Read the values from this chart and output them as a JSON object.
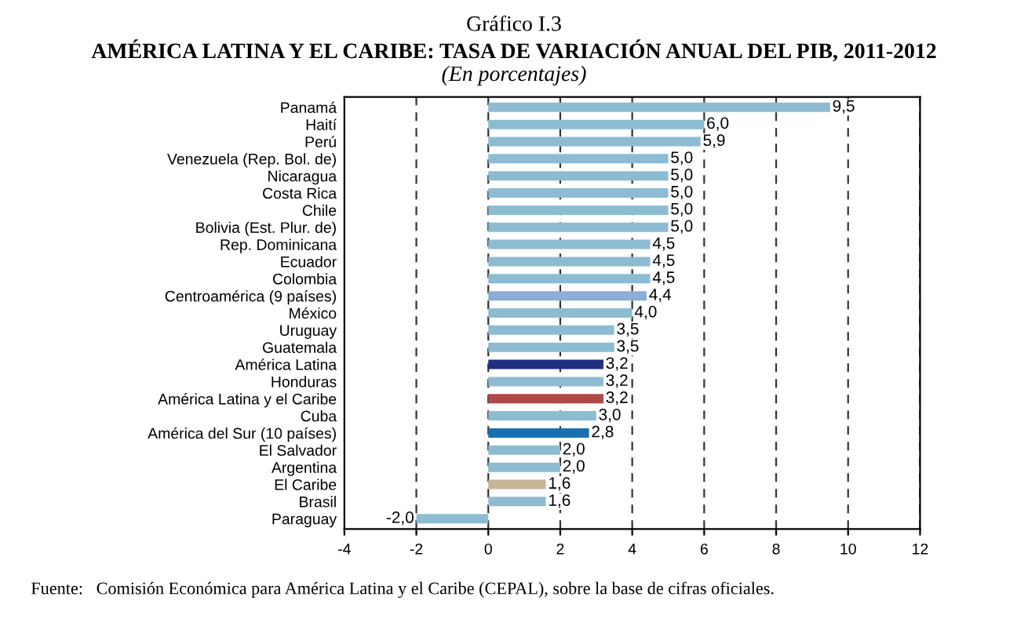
{
  "chart_data": {
    "type": "bar",
    "orientation": "horizontal",
    "title": "Gráfico I.3",
    "subtitle": "AMÉRICA LATINA Y EL CARIBE: TASA DE VARIACIÓN ANUAL DEL PIB, 2011-2012",
    "annotations": [
      "(En porcentajes)",
      "Fuente:   Comisión Económica para América Latina y el Caribe (CEPAL), sobre la base de cifras oficiales."
    ],
    "categories": [
      "Panamá",
      "Haití",
      "Perú",
      "Venezuela (Rep. Bol. de)",
      "Nicaragua",
      "Costa Rica",
      "Chile",
      "Bolivia (Est. Plur. de)",
      "Rep. Dominicana",
      "Ecuador",
      "Colombia",
      "Centroamérica (9 países)",
      "México",
      "Uruguay",
      "Guatemala",
      "América Latina",
      "Honduras",
      "América Latina y el Caribe",
      "Cuba",
      "América del Sur (10 países)",
      "El Salvador",
      "Argentina",
      "El Caribe",
      "Brasil",
      "Paraguay"
    ],
    "values": [
      9.5,
      6.0,
      5.9,
      5.0,
      5.0,
      5.0,
      5.0,
      5.0,
      4.5,
      4.5,
      4.5,
      4.4,
      4.0,
      3.5,
      3.5,
      3.2,
      3.2,
      3.2,
      3.0,
      2.8,
      2.0,
      2.0,
      1.6,
      1.6,
      -2.0
    ],
    "value_labels": [
      "9,5",
      "6,0",
      "5,9",
      "5,0",
      "5,0",
      "5,0",
      "5,0",
      "5,0",
      "4,5",
      "4,5",
      "4,5",
      "4,4",
      "4,0",
      "3,5",
      "3,5",
      "3,2",
      "3,2",
      "3,2",
      "3,0",
      "2,8",
      "2,0",
      "2,0",
      "1,6",
      "1,6",
      "-2,0"
    ],
    "colors": [
      "#8dbcd2",
      "#8dbcd2",
      "#8dbcd2",
      "#8dbcd2",
      "#8dbcd2",
      "#8dbcd2",
      "#8dbcd2",
      "#8dbcd2",
      "#8dbcd2",
      "#8dbcd2",
      "#8dbcd2",
      "#8aaed6",
      "#8dbcd2",
      "#8dbcd2",
      "#8dbcd2",
      "#1e2f80",
      "#8dbcd2",
      "#b04a4a",
      "#8dbcd2",
      "#1a6fb2",
      "#8dbcd2",
      "#8dbcd2",
      "#c8b396",
      "#8dbcd2",
      "#8dbcd2"
    ],
    "xlim": [
      -4,
      12
    ],
    "xticks": [
      -4,
      -2,
      0,
      2,
      4,
      6,
      8,
      10,
      12
    ],
    "grid": "x"
  }
}
